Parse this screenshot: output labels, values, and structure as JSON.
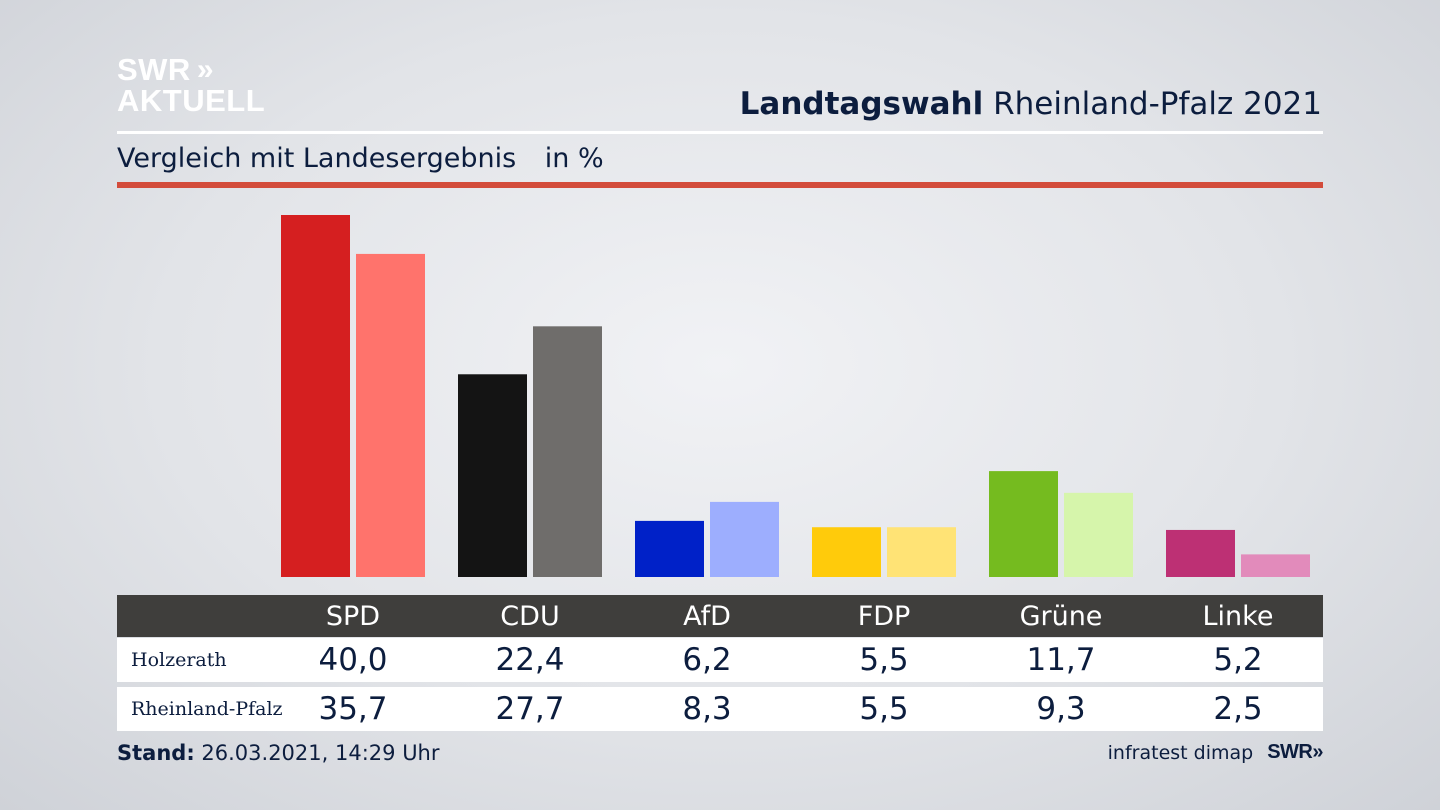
{
  "brand": {
    "logo_line1": "SWR",
    "logo_chevrons": "»",
    "logo_line2": "AKTUELL"
  },
  "header": {
    "title_bold": "Landtagswahl",
    "title_rest": "Rheinland-Pfalz 2021",
    "subtitle": "Vergleich mit Landesergebnis",
    "unit": "in %"
  },
  "colors": {
    "SPD": [
      "#d51f20",
      "#ff736c"
    ],
    "CDU": [
      "#141414",
      "#6f6d6b"
    ],
    "AfD": [
      "#0021c8",
      "#9daefe"
    ],
    "FDP": [
      "#ffcb0b",
      "#ffe375"
    ],
    "Grüne": [
      "#75bb1f",
      "#d6f5ab"
    ],
    "Linke": [
      "#bd3074",
      "#e28bbb"
    ]
  },
  "chart_data": {
    "type": "bar",
    "categories": [
      "SPD",
      "CDU",
      "AfD",
      "FDP",
      "Grüne",
      "Linke"
    ],
    "series": [
      {
        "name": "Holzerath",
        "values": [
          40.0,
          22.4,
          6.2,
          5.5,
          11.7,
          5.2
        ],
        "labels": [
          "40,0",
          "22,4",
          "6,2",
          "5,5",
          "11,7",
          "5,2"
        ]
      },
      {
        "name": "Rheinland-Pfalz",
        "values": [
          35.7,
          27.7,
          8.3,
          5.5,
          9.3,
          2.5
        ],
        "labels": [
          "35,7",
          "27,7",
          "8,3",
          "5,5",
          "9,3",
          "2,5"
        ]
      }
    ],
    "title": "Landtagswahl Rheinland-Pfalz 2021",
    "subtitle": "Vergleich mit Landesergebnis",
    "ylabel": "in %",
    "ylim": [
      0,
      40
    ],
    "grid": false
  },
  "footer": {
    "stand_label": "Stand:",
    "stand_value": "26.03.2021, 14:29 Uhr",
    "source": "infratest dimap",
    "source_logo": "SWR»"
  }
}
